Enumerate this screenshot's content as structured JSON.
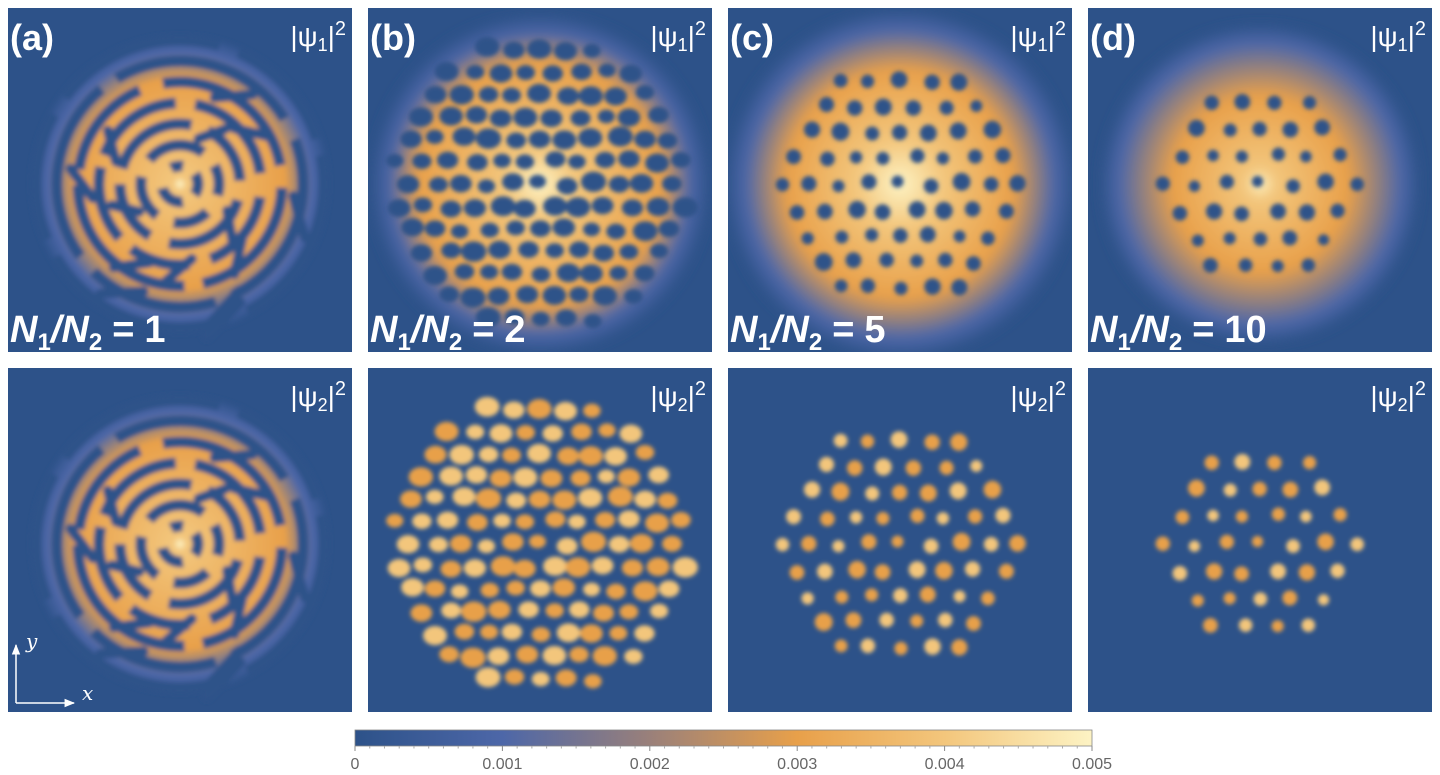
{
  "panels": [
    {
      "label": "(a)",
      "ratio": "1",
      "pattern": "stripes"
    },
    {
      "label": "(b)",
      "ratio": "2",
      "pattern": "dots"
    },
    {
      "label": "(c)",
      "ratio": "5",
      "pattern": "dots"
    },
    {
      "label": "(d)",
      "ratio": "10",
      "pattern": "dots"
    }
  ],
  "ratio_label": {
    "num": "N",
    "num_sub": "1",
    "sep": "/",
    "den": "N",
    "den_sub": "2",
    "eq": "="
  },
  "component_labels": [
    {
      "pre": "|ψ",
      "sub": "1",
      "post": "|",
      "sup": "2"
    },
    {
      "pre": "|ψ",
      "sub": "2",
      "post": "|",
      "sup": "2"
    }
  ],
  "axes": {
    "x": "x",
    "y": "y"
  },
  "colorbar": {
    "lim": [
      0,
      0.005
    ],
    "ticks": [
      0,
      0.001,
      0.002,
      0.003,
      0.004,
      0.005
    ],
    "colors": [
      "#2d5289",
      "#4d67a8",
      "#9a807a",
      "#e8a04a",
      "#f3c67c",
      "#fdf3c4"
    ]
  }
}
